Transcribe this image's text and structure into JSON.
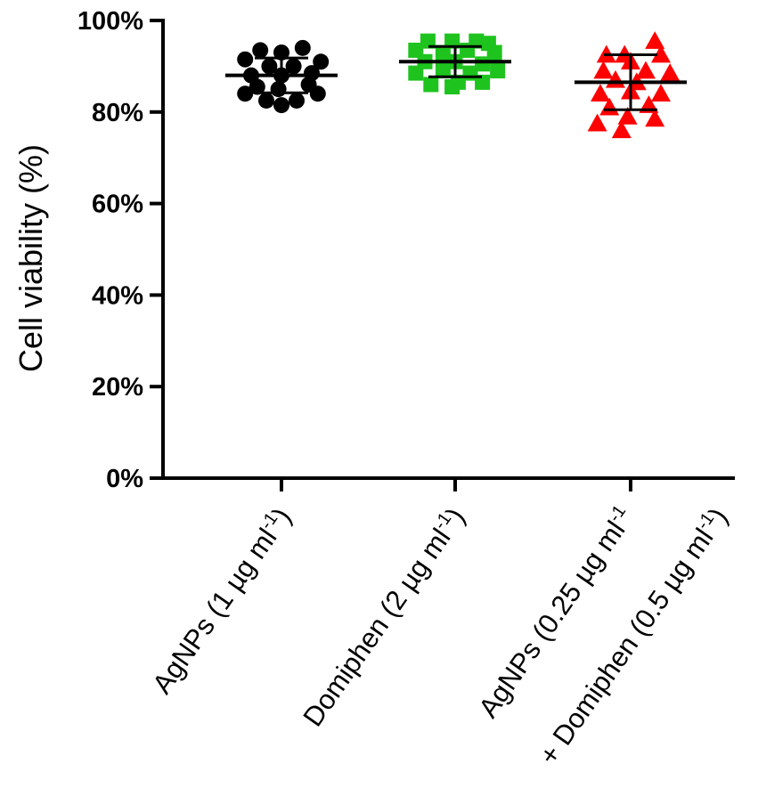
{
  "chart_data": {
    "type": "scatter",
    "title": "",
    "ylabel": "Cell viability (%)",
    "xlabel": "",
    "ylim": [
      0,
      100
    ],
    "yticks": [
      0,
      20,
      40,
      60,
      80,
      100
    ],
    "ytick_labels": [
      "0%",
      "20%",
      "40%",
      "60%",
      "80%",
      "100%"
    ],
    "grid": false,
    "legend": "none",
    "groups": [
      {
        "label_parts": [
          "AgNPs (1 µg ml",
          "-1",
          ")"
        ],
        "label_lines": [],
        "color": "#000000",
        "marker": "circle",
        "mean": 88,
        "sd": 3.8,
        "points": [
          [
            -0.14,
            93.5
          ],
          [
            0.14,
            94
          ],
          [
            0.0,
            93
          ],
          [
            -0.24,
            91.5
          ],
          [
            0.26,
            91
          ],
          [
            -0.08,
            90
          ],
          [
            0.08,
            90
          ],
          [
            -0.2,
            88
          ],
          [
            0.2,
            88.5
          ],
          [
            0.0,
            88
          ],
          [
            -0.16,
            85.5
          ],
          [
            0.18,
            86
          ],
          [
            -0.02,
            85
          ],
          [
            -0.24,
            84
          ],
          [
            0.24,
            84
          ],
          [
            -0.1,
            82.5
          ],
          [
            0.1,
            82.5
          ],
          [
            0.0,
            81.5
          ]
        ]
      },
      {
        "label_parts": [
          "Domiphen (2 µg ml",
          "-1",
          ")"
        ],
        "label_lines": [],
        "color": "#1ec31e",
        "marker": "square",
        "mean": 91,
        "sd": 3.3,
        "points": [
          [
            -0.18,
            95.5
          ],
          [
            -0.02,
            95.5
          ],
          [
            0.14,
            95.5
          ],
          [
            0.22,
            95
          ],
          [
            -0.26,
            93.5
          ],
          [
            -0.08,
            93
          ],
          [
            0.08,
            93.5
          ],
          [
            0.26,
            93
          ],
          [
            -0.2,
            91
          ],
          [
            0.0,
            91
          ],
          [
            0.18,
            90.5
          ],
          [
            -0.26,
            88.5
          ],
          [
            -0.08,
            89
          ],
          [
            0.1,
            88.5
          ],
          [
            0.28,
            89
          ],
          [
            -0.16,
            86
          ],
          [
            0.02,
            86.5
          ],
          [
            0.18,
            86.5
          ],
          [
            -0.02,
            85.5
          ]
        ]
      },
      {
        "label_parts": [],
        "label_lines": [
          [
            "AgNPs (0.25 µg ml",
            "-1",
            ""
          ],
          [
            "+ Domiphen (0.5 µg ml",
            "-1",
            ")"
          ]
        ],
        "color": "#ff0000",
        "marker": "triangle",
        "mean": 86.5,
        "sd": 6,
        "points": [
          [
            -0.16,
            92.5
          ],
          [
            0.16,
            95.5
          ],
          [
            0.0,
            91
          ],
          [
            -0.04,
            92.5
          ],
          [
            0.2,
            92.5
          ],
          [
            -0.18,
            89
          ],
          [
            0.1,
            89
          ],
          [
            0.26,
            88.5
          ],
          [
            -0.1,
            87
          ],
          [
            0.04,
            86.5
          ],
          [
            -0.2,
            84
          ],
          [
            0.0,
            84.5
          ],
          [
            0.2,
            84
          ],
          [
            -0.14,
            81
          ],
          [
            0.12,
            81.5
          ],
          [
            -0.22,
            77.5
          ],
          [
            -0.02,
            79
          ],
          [
            0.16,
            78.5
          ],
          [
            -0.06,
            76
          ]
        ]
      }
    ]
  }
}
